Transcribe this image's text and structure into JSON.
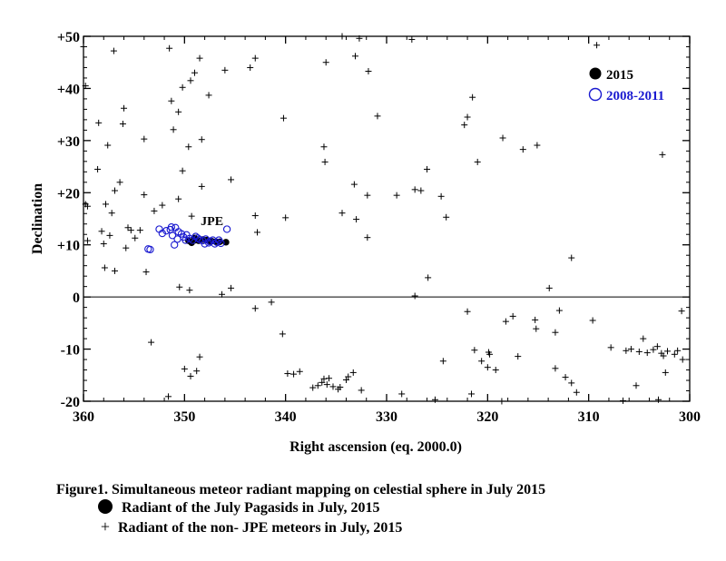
{
  "chart_data": {
    "type": "scatter",
    "xlabel": "Right ascension (eq. 2000.0)",
    "ylabel": "Declination",
    "xlim": [
      360,
      300
    ],
    "ylim": [
      -20,
      50
    ],
    "x_ticks": [
      360,
      350,
      340,
      330,
      320,
      310,
      300
    ],
    "y_ticks": [
      50,
      40,
      30,
      20,
      10,
      0,
      -10,
      -20
    ],
    "y_tick_labels": [
      "+50",
      "+40",
      "+30",
      "+20",
      "+10",
      "0",
      "-10",
      "-20"
    ],
    "zero_line": true,
    "annotation": "JPE",
    "legend": {
      "placement": "top-right",
      "entries": [
        {
          "label": "2015",
          "marker": "filled-circle",
          "color": "#000000"
        },
        {
          "label": "2008-2011",
          "marker": "open-circle",
          "color": "#1a1ad0"
        }
      ]
    },
    "series": [
      {
        "name": "2015",
        "marker": "filled-circle",
        "color": "#000000",
        "points": [
          [
            349.3,
            10.4
          ],
          [
            349.0,
            11.3
          ],
          [
            348.6,
            10.8
          ],
          [
            348.2,
            11.0
          ],
          [
            347.8,
            10.9
          ],
          [
            347.3,
            10.7
          ],
          [
            346.9,
            10.6
          ],
          [
            346.5,
            10.6
          ],
          [
            345.9,
            10.5
          ],
          [
            349.6,
            10.8
          ],
          [
            348.9,
            10.9
          ],
          [
            347.5,
            10.6
          ]
        ]
      },
      {
        "name": "2008-2011",
        "marker": "open-circle",
        "color": "#1a1ad0",
        "points": [
          [
            352.5,
            13.0
          ],
          [
            352.2,
            12.2
          ],
          [
            351.8,
            12.7
          ],
          [
            351.4,
            12.9
          ],
          [
            351.2,
            11.8
          ],
          [
            350.9,
            13.3
          ],
          [
            350.6,
            12.5
          ],
          [
            350.3,
            12.1
          ],
          [
            350.1,
            11.5
          ],
          [
            349.8,
            11.9
          ],
          [
            349.5,
            11.2
          ],
          [
            349.2,
            10.9
          ],
          [
            348.9,
            11.6
          ],
          [
            348.5,
            11.0
          ],
          [
            348.2,
            10.8
          ],
          [
            347.9,
            11.1
          ],
          [
            347.5,
            10.7
          ],
          [
            347.2,
            10.9
          ],
          [
            346.8,
            10.5
          ],
          [
            346.4,
            10.3
          ],
          [
            345.8,
            13.0
          ],
          [
            353.6,
            9.2
          ],
          [
            353.4,
            9.1
          ],
          [
            351.0,
            10.0
          ],
          [
            351.3,
            13.4
          ],
          [
            350.7,
            11.1
          ],
          [
            349.9,
            10.9
          ],
          [
            348.7,
            11.3
          ],
          [
            347.6,
            10.4
          ],
          [
            346.6,
            10.9
          ],
          [
            347.0,
            10.2
          ],
          [
            348.0,
            10.2
          ]
        ]
      },
      {
        "name": "non-JPE meteors",
        "marker": "plus",
        "color": "#000000",
        "points": [
          [
            360.0,
            48.0
          ],
          [
            359.8,
            40.5
          ],
          [
            357.0,
            47.2
          ],
          [
            351.5,
            47.7
          ],
          [
            348.5,
            45.8
          ],
          [
            346.0,
            43.5
          ],
          [
            343.0,
            45.8
          ],
          [
            336.0,
            45.0
          ],
          [
            334.4,
            50.0
          ],
          [
            332.7,
            49.6
          ],
          [
            327.5,
            49.4
          ],
          [
            309.2,
            48.3
          ],
          [
            349.0,
            43.0
          ],
          [
            349.4,
            41.5
          ],
          [
            350.2,
            40.2
          ],
          [
            347.6,
            38.7
          ],
          [
            343.5,
            44.0
          ],
          [
            340.2,
            34.3
          ],
          [
            331.8,
            43.3
          ],
          [
            330.9,
            34.7
          ],
          [
            322.3,
            33.0
          ],
          [
            322.0,
            34.5
          ],
          [
            321.5,
            38.3
          ],
          [
            358.5,
            33.4
          ],
          [
            356.0,
            36.2
          ],
          [
            356.1,
            33.2
          ],
          [
            357.6,
            29.1
          ],
          [
            354.0,
            30.3
          ],
          [
            351.3,
            37.6
          ],
          [
            351.1,
            32.1
          ],
          [
            350.6,
            35.5
          ],
          [
            349.6,
            28.8
          ],
          [
            348.3,
            30.2
          ],
          [
            336.2,
            28.8
          ],
          [
            333.1,
            46.2
          ],
          [
            321.0,
            25.9
          ],
          [
            318.5,
            30.5
          ],
          [
            316.5,
            28.3
          ],
          [
            315.1,
            29.1
          ],
          [
            302.7,
            27.3
          ],
          [
            358.6,
            24.5
          ],
          [
            356.4,
            22.0
          ],
          [
            354.0,
            19.6
          ],
          [
            350.2,
            24.2
          ],
          [
            350.6,
            18.8
          ],
          [
            348.3,
            21.2
          ],
          [
            345.4,
            22.5
          ],
          [
            343.0,
            15.6
          ],
          [
            340.0,
            15.2
          ],
          [
            336.1,
            25.9
          ],
          [
            333.2,
            21.6
          ],
          [
            331.9,
            19.5
          ],
          [
            329.0,
            19.5
          ],
          [
            327.2,
            20.6
          ],
          [
            326.6,
            20.4
          ],
          [
            326.0,
            24.5
          ],
          [
            324.6,
            19.3
          ],
          [
            324.1,
            15.3
          ],
          [
            334.4,
            16.1
          ],
          [
            333.0,
            14.9
          ],
          [
            331.9,
            11.4
          ],
          [
            359.8,
            17.8
          ],
          [
            359.6,
            17.4
          ],
          [
            357.8,
            17.8
          ],
          [
            357.2,
            16.1
          ],
          [
            358.2,
            12.6
          ],
          [
            357.4,
            11.8
          ],
          [
            356.9,
            20.4
          ],
          [
            355.6,
            13.3
          ],
          [
            355.3,
            12.8
          ],
          [
            354.9,
            11.3
          ],
          [
            354.4,
            12.8
          ],
          [
            353.0,
            16.5
          ],
          [
            352.2,
            17.6
          ],
          [
            349.3,
            15.5
          ],
          [
            342.8,
            12.4
          ],
          [
            359.6,
            10.8
          ],
          [
            358.0,
            10.2
          ],
          [
            357.9,
            5.6
          ],
          [
            356.9,
            5.0
          ],
          [
            355.8,
            9.4
          ],
          [
            353.8,
            4.8
          ],
          [
            350.5,
            1.9
          ],
          [
            349.5,
            1.3
          ],
          [
            346.3,
            0.5
          ],
          [
            345.4,
            1.7
          ],
          [
            325.9,
            3.7
          ],
          [
            327.2,
            0.2
          ],
          [
            313.9,
            1.7
          ],
          [
            311.7,
            7.5
          ],
          [
            343.0,
            -2.2
          ],
          [
            341.4,
            -1.0
          ],
          [
            340.3,
            -7.1
          ],
          [
            322.0,
            -2.8
          ],
          [
            312.9,
            -2.6
          ],
          [
            318.2,
            -4.7
          ],
          [
            317.5,
            -3.7
          ],
          [
            315.3,
            -4.4
          ],
          [
            315.2,
            -6.1
          ],
          [
            313.3,
            -6.8
          ],
          [
            309.6,
            -4.5
          ],
          [
            300.8,
            -2.7
          ],
          [
            353.3,
            -8.7
          ],
          [
            348.5,
            -11.5
          ],
          [
            348.8,
            -14.2
          ],
          [
            349.4,
            -15.2
          ],
          [
            350.0,
            -13.8
          ],
          [
            339.8,
            -14.7
          ],
          [
            339.2,
            -14.8
          ],
          [
            338.6,
            -14.3
          ],
          [
            337.3,
            -17.4
          ],
          [
            336.8,
            -17.0
          ],
          [
            336.4,
            -16.4
          ],
          [
            335.9,
            -16.8
          ],
          [
            335.7,
            -15.6
          ],
          [
            335.3,
            -17.2
          ],
          [
            334.8,
            -17.7
          ],
          [
            334.0,
            -15.9
          ],
          [
            333.8,
            -15.3
          ],
          [
            333.3,
            -14.5
          ],
          [
            332.5,
            -17.9
          ],
          [
            334.6,
            -17.3
          ],
          [
            336.2,
            -15.7
          ],
          [
            328.5,
            -18.6
          ],
          [
            325.2,
            -19.7
          ],
          [
            324.4,
            -12.3
          ],
          [
            321.3,
            -10.2
          ],
          [
            320.6,
            -12.3
          ],
          [
            319.8,
            -11.0
          ],
          [
            319.9,
            -10.6
          ],
          [
            319.2,
            -14.0
          ],
          [
            317.0,
            -11.4
          ],
          [
            313.3,
            -13.7
          ],
          [
            312.3,
            -15.4
          ],
          [
            311.7,
            -16.5
          ],
          [
            311.2,
            -18.3
          ],
          [
            307.8,
            -9.7
          ],
          [
            306.6,
            -19.9
          ],
          [
            306.3,
            -10.3
          ],
          [
            305.8,
            -10.0
          ],
          [
            305.0,
            -10.5
          ],
          [
            304.6,
            -8.0
          ],
          [
            304.2,
            -10.7
          ],
          [
            303.6,
            -10.1
          ],
          [
            303.2,
            -9.5
          ],
          [
            302.8,
            -10.8
          ],
          [
            302.6,
            -11.3
          ],
          [
            302.2,
            -10.4
          ],
          [
            301.5,
            -11.0
          ],
          [
            301.2,
            -10.3
          ],
          [
            300.7,
            -12.0
          ],
          [
            302.4,
            -14.5
          ],
          [
            303.1,
            -19.7
          ],
          [
            305.3,
            -17.0
          ],
          [
            321.6,
            -18.6
          ],
          [
            320.0,
            -13.5
          ],
          [
            351.6,
            -19.1
          ],
          [
            318.6,
            -20.0
          ]
        ]
      }
    ]
  },
  "caption": {
    "title": "Figure1.  Simultaneous meteor radiant mapping on celestial sphere in July 2015",
    "line_dot": "Radiant of the July Pagasids in July, 2015",
    "line_plus": "Radiant of the non- JPE meteors in July, 2015",
    "plus_symbol": "+"
  }
}
